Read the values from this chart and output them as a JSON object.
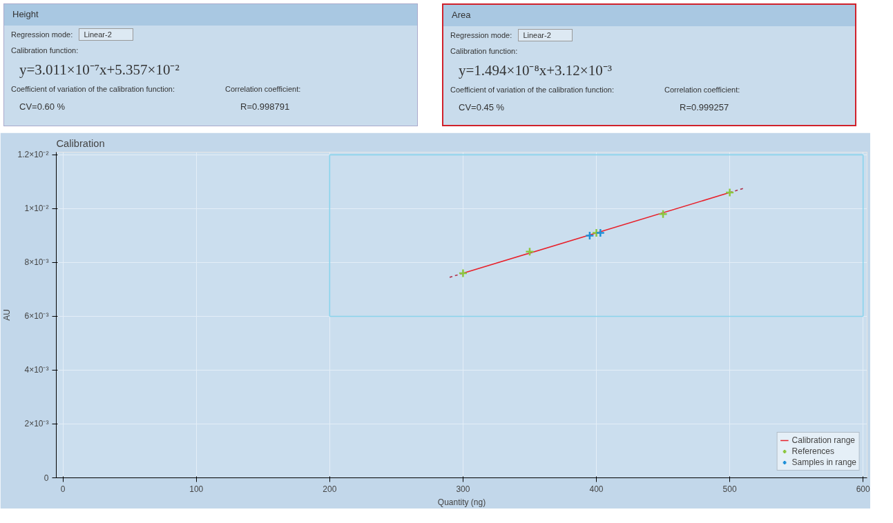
{
  "chart_data": {
    "type": "scatter",
    "title": "Calibration",
    "xlabel": "Quantity (ng)",
    "ylabel": "AU",
    "xlim": [
      -5,
      603
    ],
    "ylim": [
      0,
      0.0121
    ],
    "xticks": [
      0,
      100,
      200,
      300,
      400,
      500,
      600
    ],
    "yticks": [
      {
        "value": 0,
        "label": "0"
      },
      {
        "value": 0.002,
        "label": "2×10⁻³"
      },
      {
        "value": 0.004,
        "label": "4×10⁻³"
      },
      {
        "value": 0.006,
        "label": "6×10⁻³"
      },
      {
        "value": 0.008,
        "label": "8×10⁻³"
      },
      {
        "value": 0.01,
        "label": "1×10⁻²"
      },
      {
        "value": 0.012,
        "label": "1.2×10⁻²"
      }
    ],
    "grid": true,
    "legend": "bottom right",
    "series": [
      {
        "type": "line",
        "x": [
          200,
          600
        ],
        "values": [
          0.012,
          0.012
        ],
        "color": "#8ad4ec",
        "marker": "none",
        "line_style": "solid"
      },
      {
        "type": "line",
        "x": [
          200,
          600
        ],
        "values": [
          0.006,
          0.006
        ],
        "color": "#8ad4ec",
        "marker": "none",
        "line_style": "solid"
      },
      {
        "type": "line",
        "x": [
          200,
          200
        ],
        "values": [
          0.006,
          0.012
        ],
        "color": "#8ad4ec",
        "marker": "none",
        "line_style": "solid"
      },
      {
        "type": "line",
        "x": [
          600,
          600
        ],
        "values": [
          0.006,
          0.012
        ],
        "color": "#8ad4ec",
        "marker": "none",
        "line_style": "solid"
      },
      {
        "type": "line",
        "x": [
          290,
          300
        ],
        "values": [
          0.00745,
          0.0076
        ],
        "color": "#b0304a",
        "marker": "none",
        "line_style": "dashed"
      },
      {
        "type": "line",
        "x": [
          500,
          510
        ],
        "values": [
          0.0106,
          0.01075
        ],
        "color": "#b0304a",
        "marker": "none",
        "line_style": "dashed"
      },
      {
        "type": "line",
        "name": "Calibration range",
        "x": [
          300,
          500
        ],
        "values": [
          0.0076,
          0.0106
        ],
        "color": "#e8202a",
        "marker": "none",
        "line_style": "solid"
      },
      {
        "name": "References",
        "x": [
          300,
          350,
          400,
          450,
          500
        ],
        "values": [
          0.0076,
          0.0084,
          0.0091,
          0.0098,
          0.0106
        ],
        "color": "#8cc63f",
        "marker": "cross"
      },
      {
        "name": "Samples in range",
        "x": [
          395,
          403
        ],
        "values": [
          0.009,
          0.0091
        ],
        "color": "#1e90d8",
        "marker": "cross"
      }
    ],
    "annotations": [
      "Height",
      "Regression mode:",
      "Linear-2",
      "Calibration function:",
      "y=3.011×10⁻⁷x+5.357×10⁻²",
      "Coefficient of variation of the calibration function:",
      "Correlation coefficient:",
      "CV=0.60 %",
      "R=0.998791",
      "Area",
      "Regression mode:",
      "Linear-2",
      "Calibration function:",
      "y=1.494×10⁻⁸x+3.12×10⁻³",
      "Coefficient of variation of the calibration function:",
      "Correlation coefficient:",
      "CV=0.45 %",
      "R=0.999257"
    ]
  }
}
